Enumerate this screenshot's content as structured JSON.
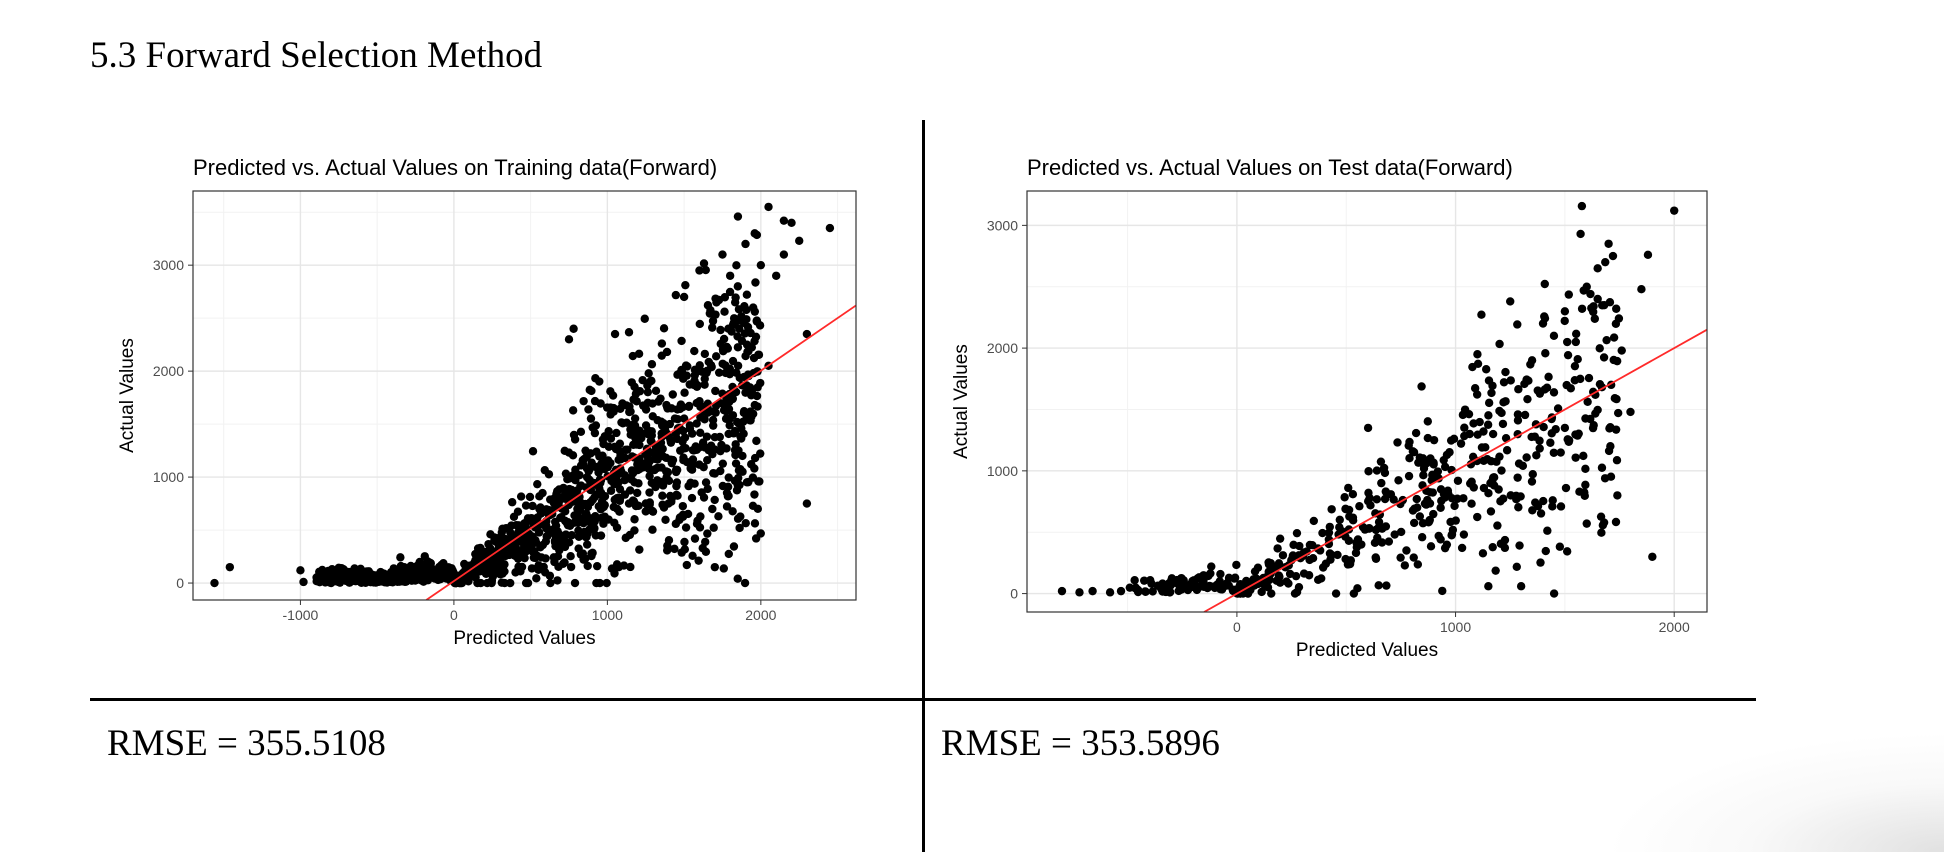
{
  "heading": "5.3 Forward Selection Method",
  "rmse": {
    "left": "RMSE = 355.5108",
    "right": "RMSE = 353.5896"
  },
  "chart_data": [
    {
      "type": "scatter",
      "title": "Predicted vs. Actual Values on Training data(Forward)",
      "xlabel": "Predicted Values",
      "ylabel": "Actual Values",
      "xlim": [
        -1700,
        2620
      ],
      "ylim": [
        -160,
        3700
      ],
      "xticks": [
        -1000,
        0,
        1000,
        2000
      ],
      "xtick_labels": [
        "-1000",
        "0",
        "1000",
        "2000"
      ],
      "yticks": [
        0,
        1000,
        2000,
        3000
      ],
      "ytick_labels": [
        "0",
        "1000",
        "2000",
        "3000"
      ],
      "grid": true,
      "legend": "none",
      "fit_line": {
        "color": "#ff2a2a",
        "points": [
          [
            -180,
            -160
          ],
          [
            2620,
            2620
          ]
        ]
      },
      "cloud": {
        "description_points": "dense fan of points, actual ≈ 0 for negative predictions, widening upward",
        "count": 1500,
        "x_range": [
          -900,
          2000
        ],
        "spread": 0.55
      },
      "points": [
        [
          -1560,
          0
        ],
        [
          -1460,
          150
        ],
        [
          -1000,
          120
        ],
        [
          -980,
          10
        ],
        [
          -840,
          30
        ],
        [
          -800,
          0
        ],
        [
          2300,
          750
        ],
        [
          2450,
          3350
        ],
        [
          2050,
          3550
        ],
        [
          2150,
          3420
        ],
        [
          2250,
          3230
        ],
        [
          1700,
          150
        ],
        [
          1050,
          2350
        ],
        [
          780,
          2400
        ],
        [
          750,
          2300
        ],
        [
          2300,
          2350
        ],
        [
          1850,
          1250
        ],
        [
          1880,
          1200
        ],
        [
          2050,
          2050
        ],
        [
          1960,
          3300
        ],
        [
          2200,
          3400
        ],
        [
          1500,
          2700
        ],
        [
          1600,
          2950
        ],
        [
          1750,
          3100
        ],
        [
          1900,
          3200
        ],
        [
          2000,
          3000
        ],
        [
          1850,
          2800
        ],
        [
          1950,
          2600
        ],
        [
          2100,
          2900
        ],
        [
          1800,
          2900
        ],
        [
          2150,
          3100
        ]
      ]
    },
    {
      "type": "scatter",
      "title": "Predicted vs. Actual Values on Test data(Forward)",
      "xlabel": "Predicted Values",
      "ylabel": "Actual Values",
      "xlim": [
        -960,
        2150
      ],
      "ylim": [
        -150,
        3280
      ],
      "xticks": [
        0,
        1000,
        2000
      ],
      "xtick_labels": [
        "0",
        "1000",
        "2000"
      ],
      "yticks": [
        0,
        1000,
        2000,
        3000
      ],
      "ytick_labels": [
        "0",
        "1000",
        "2000",
        "3000"
      ],
      "grid": true,
      "legend": "none",
      "fit_line": {
        "color": "#ff2a2a",
        "points": [
          [
            -150,
            -150
          ],
          [
            2150,
            2150
          ]
        ]
      },
      "cloud": {
        "count": 560,
        "x_range": [
          -500,
          1750
        ],
        "spread": 0.6
      },
      "points": [
        [
          2000,
          3120
        ],
        [
          1880,
          2760
        ],
        [
          1850,
          2480
        ],
        [
          1900,
          300
        ],
        [
          1800,
          1480
        ],
        [
          1740,
          800
        ],
        [
          1600,
          570
        ],
        [
          1700,
          2850
        ],
        [
          1650,
          2650
        ],
        [
          1720,
          2750
        ],
        [
          1600,
          2500
        ],
        [
          1650,
          2400
        ],
        [
          1680,
          2350
        ],
        [
          1300,
          60
        ],
        [
          1150,
          60
        ],
        [
          1250,
          2380
        ],
        [
          1400,
          2200
        ],
        [
          -800,
          20
        ],
        [
          -720,
          10
        ],
        [
          -660,
          20
        ],
        [
          -580,
          10
        ],
        [
          -530,
          20
        ],
        [
          600,
          1350
        ],
        [
          1100,
          1950
        ],
        [
          1500,
          2300
        ],
        [
          1550,
          2050
        ],
        [
          1450,
          2100
        ],
        [
          1350,
          1900
        ],
        [
          1760,
          1980
        ],
        [
          1500,
          1350
        ]
      ]
    }
  ]
}
